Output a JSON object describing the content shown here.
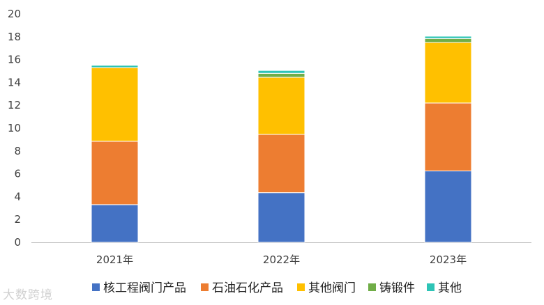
{
  "chart_data": {
    "type": "bar",
    "stacked": true,
    "categories": [
      "2021年",
      "2022年",
      "2023年"
    ],
    "series": [
      {
        "name": "核工程阀门产品",
        "color": "#4472C4",
        "values": [
          3.3,
          4.35,
          6.25
        ]
      },
      {
        "name": "石油石化产品",
        "color": "#ED7D31",
        "values": [
          5.55,
          5.1,
          5.95
        ]
      },
      {
        "name": "其他阀门",
        "color": "#FFC000",
        "values": [
          6.45,
          5.0,
          5.3
        ]
      },
      {
        "name": "铸锻件",
        "color": "#70AD47",
        "values": [
          0.0,
          0.35,
          0.35
        ]
      },
      {
        "name": "其他",
        "color": "#2EC4B6",
        "values": [
          0.2,
          0.25,
          0.2
        ]
      }
    ],
    "ylim": [
      0,
      20
    ],
    "yticks": [
      0,
      2,
      4,
      6,
      8,
      10,
      12,
      14,
      16,
      18,
      20
    ],
    "grid": false,
    "legend_position": "bottom"
  },
  "watermark": "大数跨境"
}
